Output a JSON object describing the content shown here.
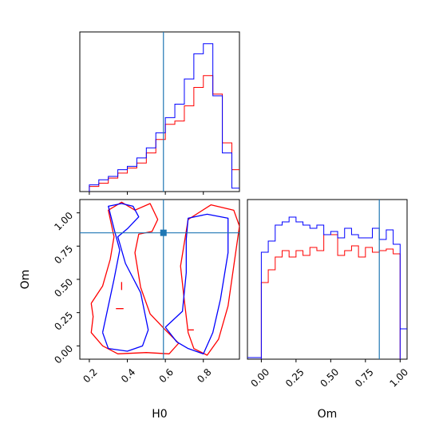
{
  "chart_data": {
    "type": "corner",
    "params": [
      "H0",
      "Om"
    ],
    "colors": {
      "red": "#ff0000",
      "blue": "#0000ff",
      "truth": "#1f77b4"
    },
    "truth": {
      "H0": 0.59,
      "Om": 0.85
    },
    "panels": [
      {
        "id": "hist-H0",
        "type": "step-histogram",
        "xlim": [
          0.15,
          0.99
        ],
        "xlabel": "",
        "xticks": [],
        "edges": [
          0.2,
          0.25,
          0.3,
          0.35,
          0.4,
          0.45,
          0.5,
          0.55,
          0.6,
          0.65,
          0.7,
          0.75,
          0.8,
          0.85,
          0.9,
          0.95,
          1.0
        ],
        "series": [
          {
            "color": "red",
            "counts": [
              0.03,
              0.05,
              0.08,
              0.11,
              0.14,
              0.17,
              0.23,
              0.31,
              0.4,
              0.42,
              0.51,
              0.62,
              0.69,
              0.58,
              0.29,
              0.13
            ]
          },
          {
            "color": "blue",
            "counts": [
              0.04,
              0.07,
              0.09,
              0.13,
              0.15,
              0.2,
              0.26,
              0.35,
              0.44,
              0.52,
              0.67,
              0.82,
              0.88,
              0.57,
              0.23,
              0.02
            ]
          }
        ]
      },
      {
        "id": "hist-Om",
        "type": "step-histogram",
        "xlim": [
          -0.1,
          1.05
        ],
        "xlabel": "Om",
        "xticks": [
          "0.00",
          "0.25",
          "0.50",
          "0.75",
          "1.00"
        ],
        "edges": [
          0.0,
          0.05,
          0.1,
          0.15,
          0.2,
          0.25,
          0.3,
          0.35,
          0.4,
          0.45,
          0.5,
          0.55,
          0.6,
          0.65,
          0.7,
          0.75,
          0.8,
          0.85,
          0.9,
          0.95,
          1.0
        ],
        "series": [
          {
            "color": "red",
            "counts": [
              0.48,
              0.56,
              0.64,
              0.68,
              0.64,
              0.68,
              0.65,
              0.7,
              0.68,
              0.78,
              0.78,
              0.65,
              0.68,
              0.71,
              0.64,
              0.7,
              0.67,
              0.68,
              0.69,
              0.66
            ]
          },
          {
            "color": "blue",
            "counts": [
              0.67,
              0.74,
              0.84,
              0.86,
              0.89,
              0.86,
              0.84,
              0.82,
              0.84,
              0.78,
              0.8,
              0.76,
              0.82,
              0.78,
              0.76,
              0.76,
              0.82,
              0.75,
              0.81,
              0.72
            ]
          }
        ]
      },
      {
        "id": "contour-H0-Om",
        "type": "2d-contour",
        "xlim": [
          0.15,
          0.99
        ],
        "ylim": [
          -0.1,
          1.1
        ],
        "xlabel": "H0",
        "ylabel": "Om",
        "xticks": [
          "0.2",
          "0.4",
          "0.6",
          "0.8"
        ],
        "yticks": [
          "0.00",
          "0.25",
          "0.50",
          "0.75",
          "1.00"
        ],
        "contours": [
          {
            "color": "red",
            "points": [
              [
                0.21,
                0.32
              ],
              [
                0.27,
                0.45
              ],
              [
                0.31,
                0.65
              ],
              [
                0.33,
                0.82
              ],
              [
                0.3,
                1.02
              ],
              [
                0.37,
                1.08
              ],
              [
                0.44,
                1.02
              ],
              [
                0.52,
                1.07
              ],
              [
                0.56,
                0.95
              ],
              [
                0.53,
                0.86
              ],
              [
                0.46,
                0.84
              ],
              [
                0.44,
                0.7
              ],
              [
                0.47,
                0.44
              ],
              [
                0.52,
                0.24
              ],
              [
                0.6,
                0.12
              ],
              [
                0.67,
                0.02
              ],
              [
                0.62,
                -0.06
              ],
              [
                0.5,
                -0.05
              ],
              [
                0.35,
                -0.06
              ],
              [
                0.27,
                0.0
              ],
              [
                0.21,
                0.1
              ],
              [
                0.22,
                0.22
              ],
              [
                0.21,
                0.32
              ]
            ]
          },
          {
            "color": "red",
            "points": [
              [
                0.7,
                0.34
              ],
              [
                0.68,
                0.6
              ],
              [
                0.72,
                0.95
              ],
              [
                0.84,
                1.06
              ],
              [
                0.96,
                1.02
              ],
              [
                0.99,
                0.9
              ],
              [
                0.96,
                0.6
              ],
              [
                0.93,
                0.3
              ],
              [
                0.88,
                0.05
              ],
              [
                0.82,
                -0.07
              ],
              [
                0.75,
                -0.02
              ],
              [
                0.72,
                0.1
              ],
              [
                0.7,
                0.34
              ]
            ]
          },
          {
            "color": "blue",
            "points": [
              [
                0.27,
                0.1
              ],
              [
                0.33,
                0.5
              ],
              [
                0.36,
                0.72
              ],
              [
                0.33,
                0.88
              ],
              [
                0.3,
                1.05
              ],
              [
                0.37,
                1.07
              ],
              [
                0.43,
                1.05
              ],
              [
                0.46,
                0.97
              ],
              [
                0.4,
                0.88
              ],
              [
                0.35,
                0.82
              ],
              [
                0.39,
                0.62
              ],
              [
                0.47,
                0.4
              ],
              [
                0.51,
                0.12
              ],
              [
                0.48,
                0.0
              ],
              [
                0.4,
                -0.04
              ],
              [
                0.3,
                -0.02
              ],
              [
                0.27,
                0.1
              ]
            ]
          },
          {
            "color": "blue",
            "points": [
              [
                0.6,
                0.14
              ],
              [
                0.69,
                0.26
              ],
              [
                0.71,
                0.55
              ],
              [
                0.71,
                0.8
              ],
              [
                0.72,
                0.96
              ],
              [
                0.82,
                0.99
              ],
              [
                0.93,
                0.96
              ],
              [
                0.93,
                0.7
              ],
              [
                0.89,
                0.35
              ],
              [
                0.85,
                0.1
              ],
              [
                0.8,
                -0.06
              ],
              [
                0.72,
                -0.02
              ],
              [
                0.66,
                0.03
              ],
              [
                0.6,
                0.14
              ]
            ]
          }
        ],
        "tick_marks": [
          {
            "color": "red",
            "points": [
              [
                0.37,
                0.42
              ],
              [
                0.37,
                0.48
              ]
            ]
          },
          {
            "color": "red",
            "points": [
              [
                0.34,
                0.28
              ],
              [
                0.38,
                0.28
              ]
            ]
          },
          {
            "color": "red",
            "points": [
              [
                0.72,
                0.12
              ],
              [
                0.75,
                0.12
              ]
            ]
          }
        ]
      }
    ]
  }
}
